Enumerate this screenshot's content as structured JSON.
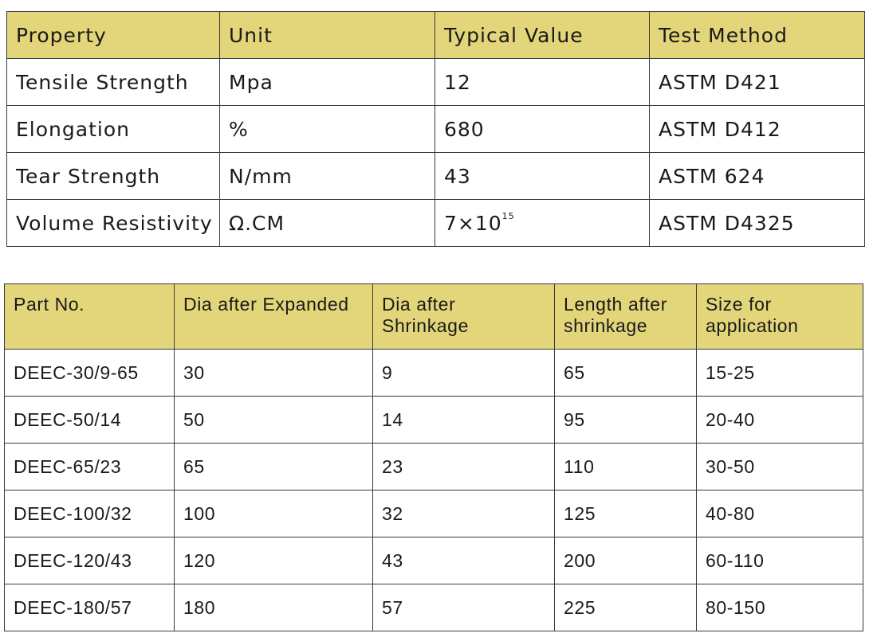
{
  "properties_table": {
    "headers": [
      "Property",
      "Unit",
      "Typical Value",
      "Test Method"
    ],
    "rows": [
      {
        "property": "Tensile Strength",
        "unit": "Mpa",
        "value": "12",
        "method": "ASTM D421"
      },
      {
        "property": "Elongation",
        "unit": "%",
        "value": "680",
        "method": "ASTM D412"
      },
      {
        "property": "Tear Strength",
        "unit": "N/mm",
        "value": "43",
        "method": "ASTM 624"
      },
      {
        "property": "Volume Resistivity",
        "unit": "Ω.CM",
        "value_base": "7×10",
        "value_exp": "15",
        "method": "ASTM D4325"
      }
    ]
  },
  "parts_table": {
    "headers": [
      "Part No.",
      "Dia after Expanded",
      "Dia after Shrinkage",
      "Length after shrinkage",
      "Size for application"
    ],
    "rows": [
      [
        "DEEC-30/9-65",
        "30",
        "9",
        "65",
        "15-25"
      ],
      [
        "DEEC-50/14",
        "50",
        "14",
        "95",
        "20-40"
      ],
      [
        "DEEC-65/23",
        "65",
        "23",
        "110",
        "30-50"
      ],
      [
        "DEEC-100/32",
        "100",
        "32",
        "125",
        "40-80"
      ],
      [
        "DEEC-120/43",
        "120",
        "43",
        "200",
        "60-110"
      ],
      [
        "DEEC-180/57",
        "180",
        "57",
        "225",
        "80-150"
      ]
    ]
  },
  "colors": {
    "header_background": "#e3d57a",
    "border": "#3a3a3a",
    "text": "#1a1a1a"
  }
}
